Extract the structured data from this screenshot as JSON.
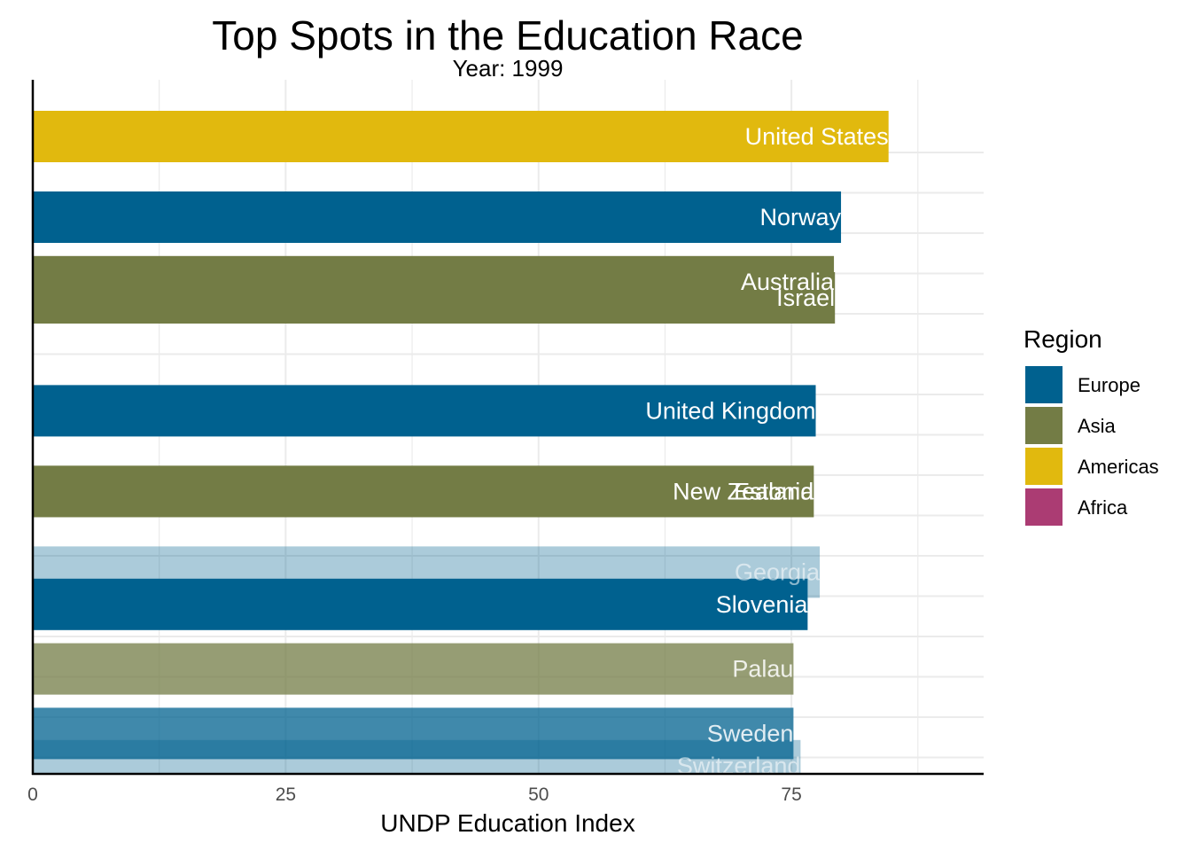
{
  "chart_data": {
    "type": "bar",
    "orientation": "horizontal",
    "title": "Top Spots in the Education Race",
    "subtitle": "Year: 1999",
    "xlabel": "UNDP Education Index",
    "ylabel": "",
    "xlim": [
      0,
      94
    ],
    "xticks": [
      0,
      25,
      50,
      75
    ],
    "grid": true,
    "legend": {
      "title": "Region",
      "position": "right",
      "entries": [
        {
          "name": "Europe",
          "color": "#00618f"
        },
        {
          "name": "Asia",
          "color": "#737c45"
        },
        {
          "name": "Americas",
          "color": "#e1b90e"
        },
        {
          "name": "Africa",
          "color": "#ab3c73"
        }
      ]
    },
    "bars": [
      {
        "label": "United States",
        "value": 84.6,
        "region": "Americas",
        "rank": 1.0,
        "opacity": 1.0
      },
      {
        "label": "Norway",
        "value": 79.9,
        "region": "Europe",
        "rank": 2.0,
        "opacity": 1.0
      },
      {
        "label": "Australia",
        "value": 79.2,
        "region": "Asia",
        "rank": 2.8,
        "opacity": 1.0
      },
      {
        "label": "Israel",
        "value": 79.3,
        "region": "Asia",
        "rank": 3.0,
        "opacity": 1.0
      },
      {
        "label": "United Kingdom",
        "value": 77.4,
        "region": "Europe",
        "rank": 4.4,
        "opacity": 1.0
      },
      {
        "label": "New Zealand",
        "value": 77.2,
        "region": "Asia",
        "rank": 5.4,
        "opacity": 1.0
      },
      {
        "label": "Estonia",
        "value": 77.2,
        "region": "Asia",
        "rank": 5.4,
        "opacity": 1.0
      },
      {
        "label": "Georgia",
        "value": 77.8,
        "region": "Europe",
        "rank": 6.4,
        "opacity": 0.33
      },
      {
        "label": "Slovenia",
        "value": 76.6,
        "region": "Europe",
        "rank": 6.8,
        "opacity": 1.0
      },
      {
        "label": "Palau",
        "value": 75.2,
        "region": "Asia",
        "rank": 7.6,
        "opacity": 0.75
      },
      {
        "label": "Switzerland",
        "value": 75.9,
        "region": "Europe",
        "rank": 8.8,
        "opacity": 0.33
      },
      {
        "label": "Sweden",
        "value": 75.2,
        "region": "Europe",
        "rank": 8.4,
        "opacity": 0.75
      }
    ]
  }
}
